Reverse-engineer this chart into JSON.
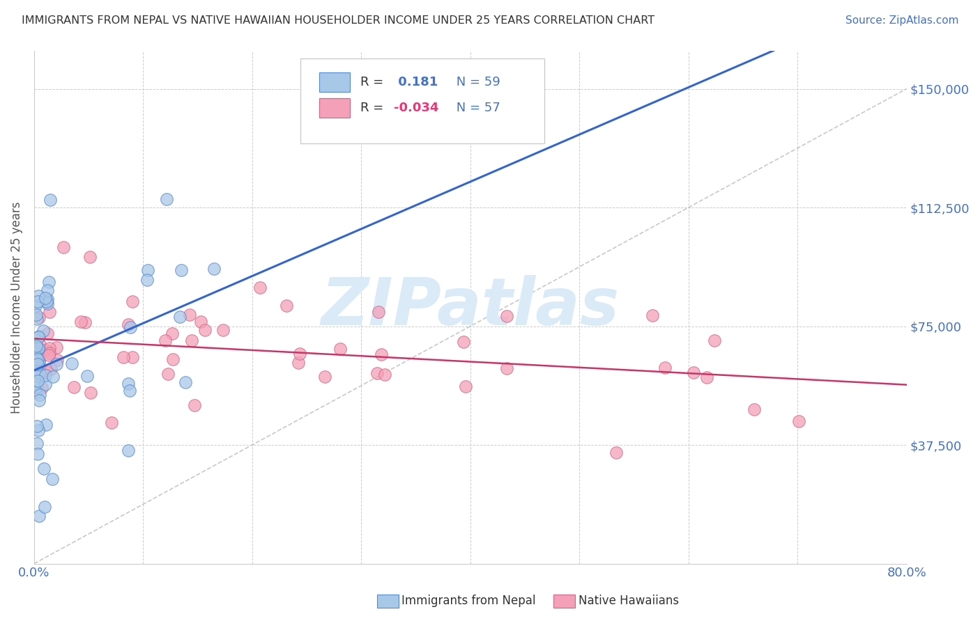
{
  "title": "IMMIGRANTS FROM NEPAL VS NATIVE HAWAIIAN HOUSEHOLDER INCOME UNDER 25 YEARS CORRELATION CHART",
  "source": "Source: ZipAtlas.com",
  "ylabel": "Householder Income Under 25 years",
  "legend_nepal": "Immigrants from Nepal",
  "legend_hawaiian": "Native Hawaiians",
  "r_nepal": 0.181,
  "n_nepal": 59,
  "r_hawaiian": -0.034,
  "n_hawaiian": 57,
  "color_nepal": "#a8c8e8",
  "color_hawaiian": "#f4a0b8",
  "edge_nepal": "#5588cc",
  "edge_hawaiian": "#cc6688",
  "line_nepal": "#3366cc",
  "line_hawaiian": "#cc3366",
  "xmin": 0.0,
  "xmax": 0.8,
  "ymin": 0,
  "ymax": 162000,
  "yticks": [
    0,
    37500,
    75000,
    112500,
    150000
  ],
  "ytick_labels": [
    "",
    "$37,500",
    "$75,000",
    "$112,500",
    "$150,000"
  ],
  "background_color": "#ffffff",
  "grid_color": "#cccccc",
  "title_color": "#333333",
  "blue_color": "#4472c4",
  "watermark_color": "#daeaf7"
}
